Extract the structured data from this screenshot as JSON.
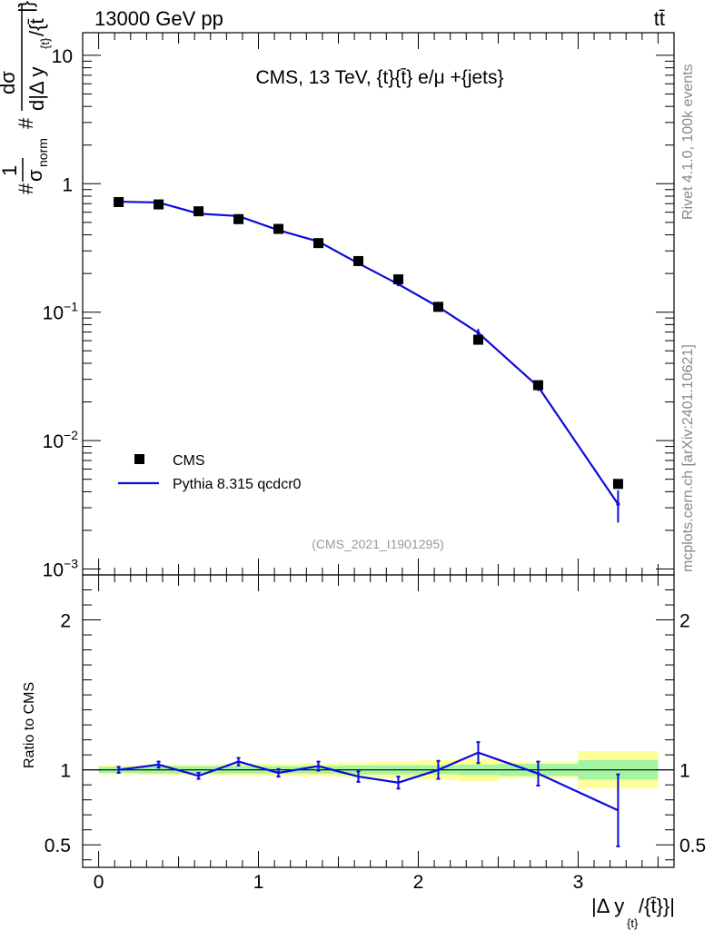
{
  "header": {
    "left": "13000 GeV pp",
    "right": "tt̄"
  },
  "side_labels": {
    "top": "Rivet 4.1.0,  100k events",
    "bottom": "mcplots.cern.ch [arXiv:2401.10621]"
  },
  "chart_data": {
    "type": "scatter",
    "title": "CMS, 13 TeV, {t}{t̄} e/μ +{jets}",
    "watermark": "(CMS_2021_I1901295)",
    "ylabel_parts": [
      "#",
      "1",
      "σ",
      "norm",
      "#",
      "dσ",
      "d|Δ y",
      "{t}",
      "/{t̄",
      "|}"
    ],
    "xlabel_parts": [
      "|Δ y",
      "{t}",
      "/{t̄}}|"
    ],
    "ratio_ylabel": "Ratio to CMS",
    "xlim": [
      -0.1,
      3.6
    ],
    "ylim": [
      0.0009,
      15
    ],
    "yscale": "log",
    "ratio_ylim": [
      0.35,
      2.3
    ],
    "x_ticks": [
      "0",
      "1",
      "2",
      "3"
    ],
    "x_tick_values": [
      0,
      1,
      2,
      3
    ],
    "y_tick_labels": [
      {
        "base": "10",
        "exp": "",
        "value": 10
      },
      {
        "base": "1",
        "exp": "",
        "value": 1
      },
      {
        "base": "10",
        "exp": "−1",
        "value": 0.1
      },
      {
        "base": "10",
        "exp": "−2",
        "value": 0.01
      },
      {
        "base": "10",
        "exp": "−3",
        "value": 0.001
      }
    ],
    "ratio_ticks": [
      "0.5",
      "1",
      "2"
    ],
    "ratio_tick_values": [
      0.5,
      1,
      2
    ],
    "legend": [
      {
        "label": "CMS",
        "kind": "marker"
      },
      {
        "label": "Pythia 8.315 qcdcr0",
        "kind": "line"
      }
    ],
    "legend_position": "bottom-left",
    "colors": {
      "data": "#000000",
      "mc": "#0b0bdd",
      "band_inner": "#a3f5a3",
      "band_outer": "#ffff99"
    },
    "bins": [
      {
        "x": 0.125,
        "lo": 0.0,
        "hi": 0.25
      },
      {
        "x": 0.375,
        "lo": 0.25,
        "hi": 0.5
      },
      {
        "x": 0.625,
        "lo": 0.5,
        "hi": 0.75
      },
      {
        "x": 0.875,
        "lo": 0.75,
        "hi": 1.0
      },
      {
        "x": 1.125,
        "lo": 1.0,
        "hi": 1.25
      },
      {
        "x": 1.375,
        "lo": 1.25,
        "hi": 1.5
      },
      {
        "x": 1.625,
        "lo": 1.5,
        "hi": 1.75
      },
      {
        "x": 1.875,
        "lo": 1.75,
        "hi": 2.0
      },
      {
        "x": 2.125,
        "lo": 2.0,
        "hi": 2.25
      },
      {
        "x": 2.375,
        "lo": 2.25,
        "hi": 2.5
      },
      {
        "x": 2.75,
        "lo": 2.5,
        "hi": 3.0
      },
      {
        "x": 3.25,
        "lo": 3.0,
        "hi": 3.5
      }
    ],
    "series": [
      {
        "name": "CMS",
        "values": [
          0.72,
          0.69,
          0.61,
          0.53,
          0.445,
          0.345,
          0.25,
          0.18,
          0.11,
          0.061,
          0.027,
          0.0046
        ],
        "band_inner": [
          0.02,
          0.025,
          0.025,
          0.025,
          0.025,
          0.025,
          0.03,
          0.03,
          0.03,
          0.035,
          0.04,
          0.065
        ],
        "band_outer": [
          0.03,
          0.035,
          0.035,
          0.04,
          0.04,
          0.045,
          0.05,
          0.055,
          0.065,
          0.075,
          0.055,
          0.125
        ]
      },
      {
        "name": "Pythia 8.315 qcdcr0",
        "values": [
          0.725,
          0.715,
          0.585,
          0.56,
          0.435,
          0.355,
          0.24,
          0.165,
          0.11,
          0.069,
          0.0263,
          0.0032
        ],
        "errors": [
          0.01,
          0.01,
          0.01,
          0.01,
          0.008,
          0.006,
          0.006,
          0.006,
          0.005,
          0.005,
          0.002,
          0.0009
        ],
        "ratio": [
          1.0,
          1.035,
          0.96,
          1.055,
          0.98,
          1.025,
          0.955,
          0.915,
          1.0,
          1.115,
          0.975,
          0.73
        ],
        "ratio_errors": [
          0.02,
          0.02,
          0.02,
          0.025,
          0.025,
          0.03,
          0.035,
          0.04,
          0.06,
          0.07,
          0.08,
          0.24
        ]
      }
    ]
  }
}
